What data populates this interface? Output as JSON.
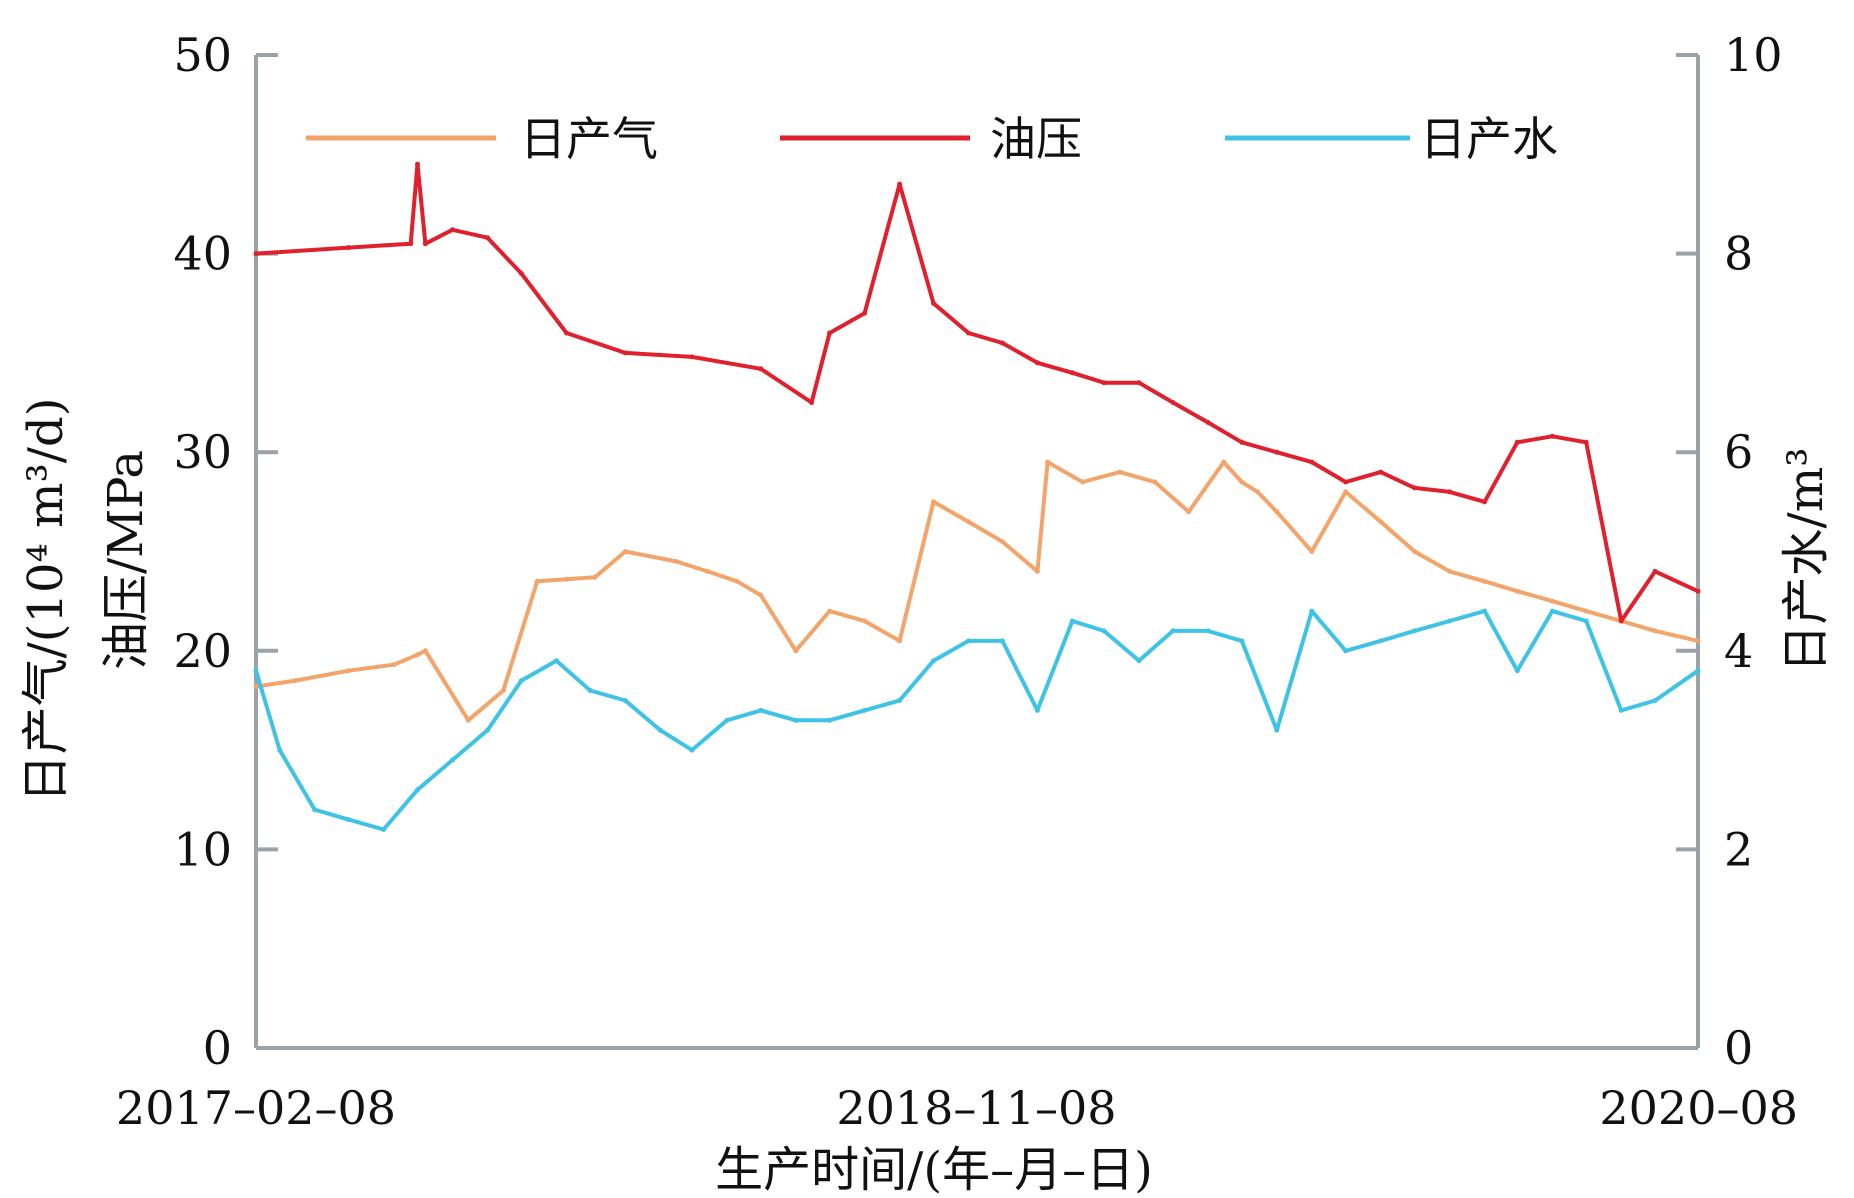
{
  "chart_data": {
    "type": "line",
    "xlabel": "生产时间/(年–月–日)",
    "ylabel_left_line1": "日产气/(10⁴ m³/d)",
    "ylabel_left_line2": "油压/MPa",
    "ylabel_right": "日产水/m³",
    "x_ticks": [
      "2017–02–08",
      "2018–11–08",
      "2020–08"
    ],
    "x_range": [
      "2017-02-08",
      "2020-08-08"
    ],
    "y_left_ticks": [
      "0",
      "10",
      "20",
      "30",
      "40",
      "50"
    ],
    "y_left_range": [
      0,
      50
    ],
    "y_right_ticks": [
      "0",
      "2",
      "4",
      "6",
      "8",
      "10"
    ],
    "y_right_range": [
      0,
      10
    ],
    "legend_position": "top",
    "grid": false,
    "series": [
      {
        "name": "日产气",
        "axis": "left",
        "color": "#f2a46a",
        "x": [
          "2017-02-08",
          "2017-03-15",
          "2017-05-01",
          "2017-06-10",
          "2017-07-01",
          "2017-07-08",
          "2017-08-15",
          "2017-09-15",
          "2017-10-15",
          "2017-11-10",
          "2017-12-05",
          "2018-01-01",
          "2018-02-15",
          "2018-03-15",
          "2018-04-10",
          "2018-05-01",
          "2018-06-01",
          "2018-07-01",
          "2018-08-01",
          "2018-09-01",
          "2018-10-01",
          "2018-11-01",
          "2018-12-01",
          "2019-01-01",
          "2019-01-10",
          "2019-02-10",
          "2019-03-15",
          "2019-04-15",
          "2019-05-15",
          "2019-06-15",
          "2019-07-01",
          "2019-07-15",
          "2019-08-01",
          "2019-09-01",
          "2019-10-01",
          "2019-11-01",
          "2019-12-01",
          "2020-01-01",
          "2020-02-01",
          "2020-03-01",
          "2020-04-01",
          "2020-05-01",
          "2020-06-01",
          "2020-07-01",
          "2020-08-08"
        ],
        "values": [
          18.2,
          18.5,
          19.0,
          19.3,
          19.8,
          20.0,
          16.5,
          18.0,
          23.5,
          23.6,
          23.7,
          25.0,
          24.5,
          24.0,
          23.5,
          22.8,
          20.0,
          22.0,
          21.5,
          20.5,
          27.5,
          26.5,
          25.5,
          24.0,
          29.5,
          28.5,
          29.0,
          28.5,
          27.0,
          29.5,
          28.5,
          28.0,
          27.0,
          25.0,
          28.0,
          26.5,
          25.0,
          24.0,
          23.5,
          23.0,
          22.5,
          22.0,
          21.5,
          21.0,
          20.5
        ]
      },
      {
        "name": "油压",
        "axis": "left",
        "color": "#e0202c",
        "x": [
          "2017-02-08",
          "2017-05-01",
          "2017-06-25",
          "2017-07-01",
          "2017-07-08",
          "2017-08-01",
          "2017-09-01",
          "2017-10-01",
          "2017-11-10",
          "2018-01-01",
          "2018-03-01",
          "2018-05-01",
          "2018-06-15",
          "2018-07-01",
          "2018-08-01",
          "2018-09-01",
          "2018-10-01",
          "2018-11-01",
          "2018-12-01",
          "2019-01-01",
          "2019-02-01",
          "2019-03-01",
          "2019-04-01",
          "2019-05-01",
          "2019-06-01",
          "2019-07-01",
          "2019-08-01",
          "2019-09-01",
          "2019-10-01",
          "2019-11-01",
          "2019-12-01",
          "2020-01-01",
          "2020-02-01",
          "2020-03-01",
          "2020-04-01",
          "2020-05-01",
          "2020-06-01",
          "2020-07-01",
          "2020-08-08"
        ],
        "values": [
          40.0,
          40.3,
          40.5,
          44.5,
          40.5,
          41.2,
          40.8,
          39.0,
          36.0,
          35.0,
          34.8,
          34.2,
          32.5,
          36.0,
          37.0,
          43.5,
          37.5,
          36.0,
          35.5,
          34.5,
          34.0,
          33.5,
          33.5,
          32.5,
          31.5,
          30.5,
          30.0,
          29.5,
          28.5,
          29.0,
          28.2,
          28.0,
          27.5,
          30.5,
          30.8,
          30.5,
          21.5,
          24.0,
          23.0
        ]
      },
      {
        "name": "日产水",
        "axis": "right",
        "color": "#3ec3e6",
        "x": [
          "2017-02-08",
          "2017-03-01",
          "2017-04-01",
          "2017-05-01",
          "2017-06-01",
          "2017-07-01",
          "2017-08-01",
          "2017-09-01",
          "2017-10-01",
          "2017-11-01",
          "2017-12-01",
          "2018-01-01",
          "2018-02-01",
          "2018-03-01",
          "2018-04-01",
          "2018-05-01",
          "2018-06-01",
          "2018-07-01",
          "2018-08-01",
          "2018-09-01",
          "2018-10-01",
          "2018-11-01",
          "2018-12-01",
          "2019-01-01",
          "2019-02-01",
          "2019-03-01",
          "2019-04-01",
          "2019-05-01",
          "2019-06-01",
          "2019-07-01",
          "2019-08-01",
          "2019-09-01",
          "2019-10-01",
          "2019-11-01",
          "2019-12-01",
          "2020-01-01",
          "2020-02-01",
          "2020-03-01",
          "2020-04-01",
          "2020-05-01",
          "2020-06-01",
          "2020-07-01",
          "2020-08-08"
        ],
        "values": [
          3.8,
          3.0,
          2.4,
          2.3,
          2.2,
          2.6,
          2.9,
          3.2,
          3.7,
          3.9,
          3.6,
          3.5,
          3.2,
          3.0,
          3.3,
          3.4,
          3.3,
          3.3,
          3.4,
          3.5,
          3.9,
          4.1,
          4.1,
          3.4,
          4.3,
          4.2,
          3.9,
          4.2,
          4.2,
          4.1,
          3.2,
          4.4,
          4.0,
          4.1,
          4.2,
          4.3,
          4.4,
          3.8,
          4.4,
          4.3,
          3.4,
          3.5,
          3.8
        ]
      }
    ]
  }
}
